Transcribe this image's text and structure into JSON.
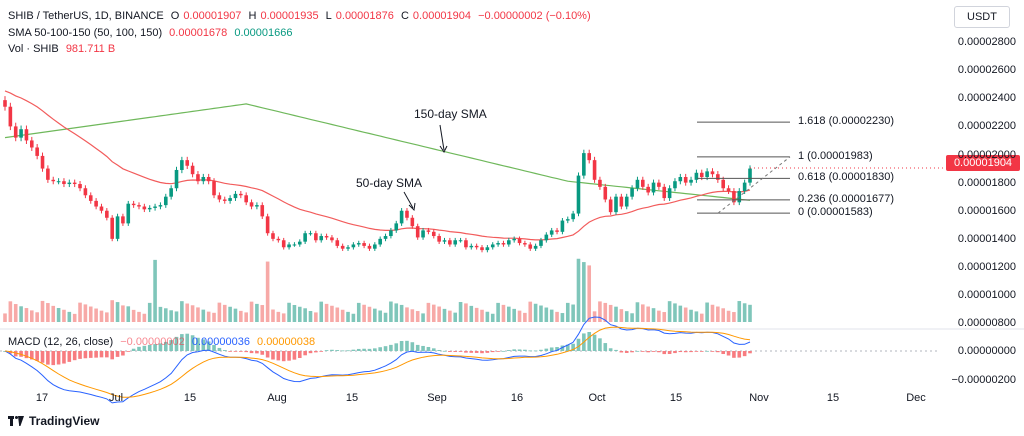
{
  "legend": {
    "symbol": "SHIB / TetherUS, 1D, BINANCE",
    "o_label": "O",
    "o_value": "0.00001907",
    "h_label": "H",
    "h_value": "0.00001935",
    "l_label": "L",
    "l_value": "0.00001876",
    "c_label": "C",
    "c_value": "0.00001904",
    "change": "−0.00000002 (−0.10%)",
    "sma_label": "SMA 50-100-150 (50, 100, 150)",
    "sma_value1": "0.00001678",
    "sma_value2": "0.00001666",
    "vol_label": "Vol · SHIB",
    "vol_value": "981.711 B",
    "macd_label": "MACD (12, 26, close)",
    "macd_value1": "−0.00000002",
    "macd_value2": "0.00000036",
    "macd_value3": "0.00000038"
  },
  "currency_button": "USDT",
  "last_price_tag": "0.00001904",
  "price_axis": [
    "0.00002800",
    "0.00002600",
    "0.00002400",
    "0.00002200",
    "0.00002000",
    "0.00001800",
    "0.00001600",
    "0.00001400",
    "0.00001200",
    "0.00001000",
    "0.00000800"
  ],
  "macd_axis": [
    "0.00000000",
    "−0.00000200"
  ],
  "time_axis": [
    "17",
    "Jul",
    "15",
    "Aug",
    "15",
    "Sep",
    "16",
    "Oct",
    "15",
    "Nov",
    "15",
    "Dec"
  ],
  "annotations": {
    "sma150": "150-day SMA",
    "sma50": "50-day SMA"
  },
  "fib_levels": [
    {
      "label": "1.618 (0.00002230)",
      "value": 2.23e-05
    },
    {
      "label": "1 (0.00001983)",
      "value": 1.983e-05
    },
    {
      "label": "0.618 (0.00001830)",
      "value": 1.83e-05
    },
    {
      "label": "0.236 (0.00001677)",
      "value": 1.677e-05
    },
    {
      "label": "0 (0.00001583)",
      "value": 1.583e-05
    }
  ],
  "brand": "TradingView",
  "colors": {
    "up": "#089981",
    "down": "#f23645",
    "vol_up": "#7fc6ba",
    "vol_down": "#f7a9a7",
    "sma50": "#f25c5c",
    "sma150": "#6fb85b",
    "macd": "#2962ff",
    "signal": "#ff9800"
  },
  "chart_data": {
    "type": "candlestick",
    "price_range": [
      7.8e-06,
      2.9e-05
    ],
    "closes": [
      2.34e-05,
      2.2e-05,
      2.12e-05,
      2.18e-05,
      2.1e-05,
      2.05e-05,
      1.99e-05,
      1.9e-05,
      1.82e-05,
      1.81e-05,
      1.81e-05,
      1.79e-05,
      1.8e-05,
      1.79e-05,
      1.76e-05,
      1.71e-05,
      1.67e-05,
      1.63e-05,
      1.6e-05,
      1.55e-05,
      1.4e-05,
      1.56e-05,
      1.51e-05,
      1.65e-05,
      1.64e-05,
      1.63e-05,
      1.61e-05,
      1.62e-05,
      1.63e-05,
      1.64e-05,
      1.7e-05,
      1.76e-05,
      1.89e-05,
      1.96e-05,
      1.92e-05,
      1.86e-05,
      1.81e-05,
      1.84e-05,
      1.81e-05,
      1.71e-05,
      1.68e-05,
      1.67e-05,
      1.69e-05,
      1.72e-05,
      1.71e-05,
      1.66e-05,
      1.63e-05,
      1.64e-05,
      1.56e-05,
      1.44e-05,
      1.4e-05,
      1.39e-05,
      1.34e-05,
      1.36e-05,
      1.36e-05,
      1.38e-05,
      1.44e-05,
      1.44e-05,
      1.39e-05,
      1.42e-05,
      1.41e-05,
      1.39e-05,
      1.35e-05,
      1.33e-05,
      1.34e-05,
      1.36e-05,
      1.37e-05,
      1.35e-05,
      1.33e-05,
      1.36e-05,
      1.4e-05,
      1.42e-05,
      1.46e-05,
      1.51e-05,
      1.6e-05,
      1.55e-05,
      1.49e-05,
      1.41e-05,
      1.46e-05,
      1.45e-05,
      1.42e-05,
      1.38e-05,
      1.39e-05,
      1.36e-05,
      1.39e-05,
      1.39e-05,
      1.34e-05,
      1.35e-05,
      1.34e-05,
      1.32e-05,
      1.34e-05,
      1.36e-05,
      1.37e-05,
      1.36e-05,
      1.39e-05,
      1.4e-05,
      1.37e-05,
      1.36e-05,
      1.33e-05,
      1.35e-05,
      1.39e-05,
      1.43e-05,
      1.46e-05,
      1.45e-05,
      1.53e-05,
      1.54e-05,
      1.58e-05,
      1.85e-05,
      2.01e-05,
      1.96e-05,
      1.82e-05,
      1.77e-05,
      1.68e-05,
      1.59e-05,
      1.7e-05,
      1.63e-05,
      1.7e-05,
      1.76e-05,
      1.82e-05,
      1.77e-05,
      1.73e-05,
      1.8e-05,
      1.77e-05,
      1.69e-05,
      1.76e-05,
      1.81e-05,
      1.84e-05,
      1.8e-05,
      1.82e-05,
      1.87e-05,
      1.84e-05,
      1.88e-05,
      1.86e-05,
      1.82e-05,
      1.76e-05,
      1.74e-05,
      1.66e-05,
      1.74e-05,
      1.8e-05,
      1.9e-05
    ],
    "sma50_start": 2.46e-05,
    "sma150_start": 2.12e-05
  }
}
